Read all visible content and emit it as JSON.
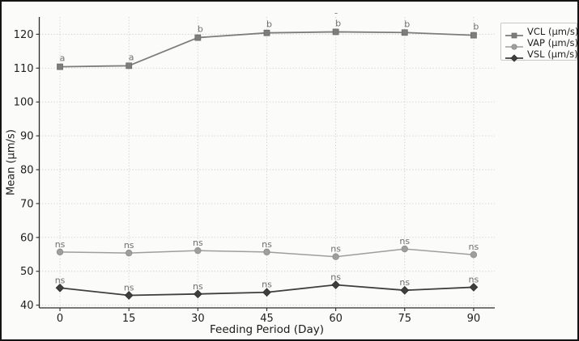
{
  "figure": {
    "border_color": "#141414",
    "background": "#fbfbf9",
    "stray_mark": "-"
  },
  "axes": {
    "x_ticks": [
      0,
      15,
      30,
      45,
      60,
      75,
      90
    ],
    "y_ticks": [
      40,
      50,
      60,
      70,
      80,
      90,
      100,
      110,
      120
    ],
    "spine_color": "#2b2b2b",
    "grid_color": "#cbcbc9"
  },
  "chart_data": {
    "type": "line",
    "title": "",
    "xlabel": "Feeding Period (Day)",
    "ylabel": "Mean (μm/s)",
    "x": [
      0,
      15,
      30,
      45,
      60,
      75,
      90
    ],
    "xlim": [
      -4.5,
      94.6
    ],
    "ylim": [
      39.2,
      125.1
    ],
    "grid": true,
    "legend_position": "upper right",
    "series": [
      {
        "name": "VCL (μm/s)",
        "marker": "square",
        "color": "#7d7d7d",
        "edge_color": "#6a6a6a",
        "values": [
          110.4,
          110.7,
          119.0,
          120.4,
          120.7,
          120.5,
          119.7
        ],
        "annotations": [
          "a",
          "a",
          "b",
          "b",
          "b",
          "b",
          "b"
        ]
      },
      {
        "name": "VAP (μm/s)",
        "marker": "circle",
        "color": "#9e9e9e",
        "edge_color": "#8c8c8c",
        "values": [
          55.7,
          55.4,
          56.1,
          55.7,
          54.3,
          56.6,
          54.9
        ],
        "annotations": [
          "ns",
          "ns",
          "ns",
          "ns",
          "ns",
          "ns",
          "ns"
        ]
      },
      {
        "name": "VSL (μm/s)",
        "marker": "diamond",
        "color": "#3f3f3f",
        "edge_color": "#2e2e2e",
        "values": [
          45.1,
          42.9,
          43.3,
          43.8,
          46.0,
          44.4,
          45.3
        ],
        "annotations": [
          "ns",
          "ns",
          "ns",
          "ns",
          "ns",
          "ns",
          "ns"
        ]
      }
    ]
  }
}
